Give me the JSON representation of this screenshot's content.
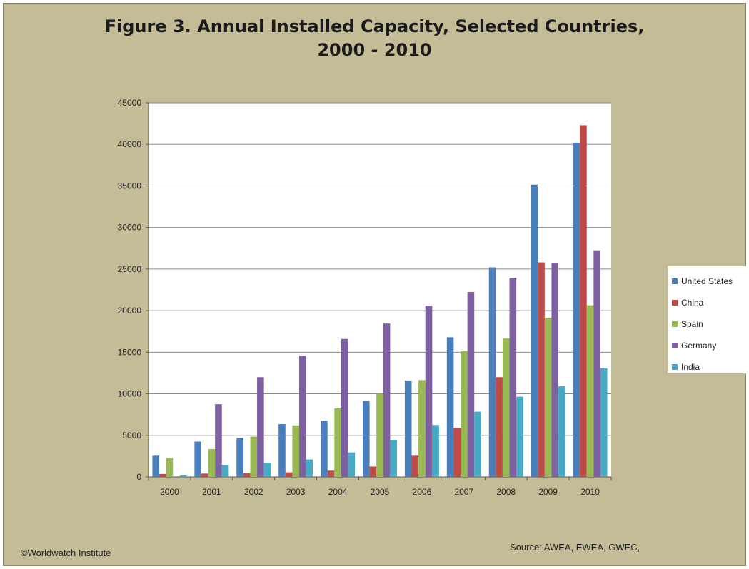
{
  "chart_data": {
    "type": "bar",
    "title_lines": [
      "Figure 3. Annual Installed Capacity, Selected Countries,",
      "2000 - 2010"
    ],
    "categories": [
      "2000",
      "2001",
      "2002",
      "2003",
      "2004",
      "2005",
      "2006",
      "2007",
      "2008",
      "2009",
      "2010"
    ],
    "series": [
      {
        "name": "United States",
        "color": "#4a7ebb",
        "values": [
          2550,
          4250,
          4700,
          6350,
          6750,
          9150,
          11600,
          16800,
          25200,
          35150,
          40200
        ]
      },
      {
        "name": "China",
        "color": "#be4b48",
        "values": [
          350,
          400,
          450,
          550,
          750,
          1250,
          2550,
          5900,
          12000,
          25800,
          42300
        ]
      },
      {
        "name": "Spain",
        "color": "#98b954",
        "values": [
          2250,
          3350,
          4850,
          6200,
          8250,
          10000,
          11650,
          15150,
          16650,
          19150,
          20650
        ]
      },
      {
        "name": "Germany",
        "color": "#7d60a0",
        "values": [
          0,
          8750,
          12000,
          14600,
          16600,
          18450,
          20600,
          22250,
          23950,
          25750,
          27250
        ]
      },
      {
        "name": "India",
        "color": "#46aac5",
        "values": [
          200,
          1450,
          1700,
          2100,
          2950,
          4450,
          6250,
          7850,
          9650,
          10900,
          13050
        ]
      }
    ],
    "y_ticks": [
      "0",
      "5000",
      "10000",
      "15000",
      "20000",
      "25000",
      "30000",
      "35000",
      "40000",
      "45000"
    ],
    "ylim": [
      0,
      45000
    ],
    "grid": true,
    "legend_position": "right"
  },
  "footer": {
    "credit": "©Worldwatch Institute",
    "source": "Source: AWEA, EWEA, GWEC,"
  }
}
